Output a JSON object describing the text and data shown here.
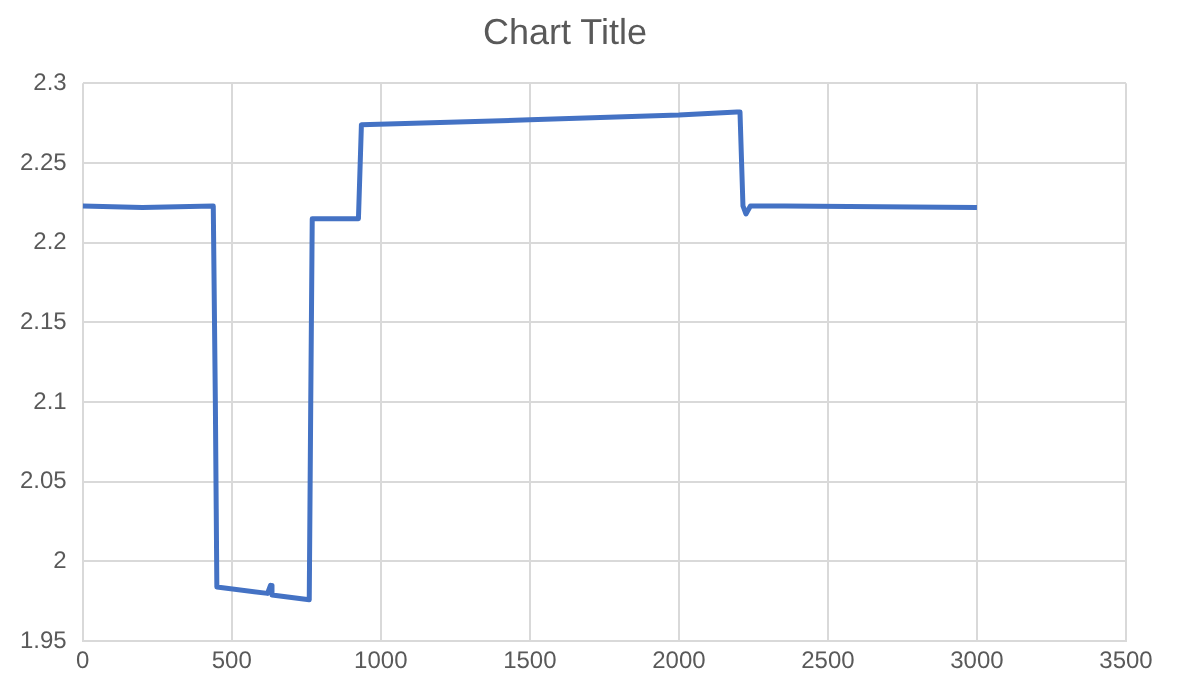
{
  "chart_data": {
    "type": "line",
    "title": "Chart Title",
    "series": [
      {
        "color": "#4472c4",
        "x": [
          0,
          200,
          438,
          445,
          450,
          620,
          630,
          635,
          760,
          765,
          770,
          925,
          935,
          1500,
          2000,
          2195,
          2205,
          2215,
          2225,
          2240,
          2350,
          2355,
          3000
        ],
        "values": [
          2.223,
          2.222,
          2.223,
          2.1,
          1.984,
          1.98,
          1.985,
          1.979,
          1.976,
          2.1,
          2.215,
          2.215,
          2.274,
          2.277,
          2.28,
          2.282,
          2.282,
          2.223,
          2.218,
          2.223,
          2.223,
          2.223,
          2.222
        ]
      }
    ],
    "xlim": [
      0,
      3500
    ],
    "xticks": [
      0,
      500,
      1000,
      1500,
      2000,
      2500,
      3000,
      3500
    ],
    "ylim": [
      1.95,
      2.3
    ],
    "yticks": [
      1.95,
      2,
      2.05,
      2.1,
      2.15,
      2.2,
      2.25,
      2.3
    ],
    "grid": true,
    "legend": false,
    "marker": "none",
    "line_style": "solid"
  }
}
